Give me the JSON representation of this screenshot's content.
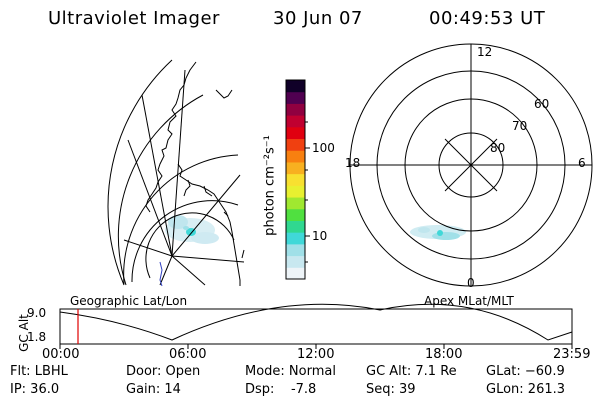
{
  "header": {
    "title": "Ultraviolet Imager",
    "date": "30 Jun 07",
    "time": "00:49:53 UT"
  },
  "colorbar": {
    "unit_label": "photon cm⁻²s⁻¹",
    "ticks": [
      "100",
      "10"
    ],
    "colors": [
      "#eef4f8",
      "#c8e8f0",
      "#a0e0e8",
      "#40d8d8",
      "#30d890",
      "#50e040",
      "#a0e830",
      "#e8f030",
      "#f8e030",
      "#f8b020",
      "#f88010",
      "#f04010",
      "#e00010",
      "#c00030",
      "#900040",
      "#500050",
      "#100028"
    ]
  },
  "geo_map": {
    "title": "Geographic Lat/Lon"
  },
  "polar_plot": {
    "title": "Apex MLat/MLT",
    "hour_labels": {
      "top": "12",
      "left": "18",
      "right": "6",
      "bottom": "0"
    },
    "lat_labels": [
      "60",
      "70",
      "80"
    ]
  },
  "altitude_plot": {
    "ylabel": "GC Alt",
    "y_ticks": [
      "9.0",
      "1.8"
    ],
    "x_ticks": [
      "00:00",
      "06:00",
      "12:00",
      "18:00",
      "23:59"
    ],
    "marker_color": "#e00000"
  },
  "footer": {
    "flt": "Flt: LBHL",
    "ip": "IP: 36.0",
    "door": "Door: Open",
    "gain": "Gain: 14",
    "mode": "Mode: Normal",
    "dsp": "Dsp:    -7.8",
    "gc_alt": "GC Alt: 7.1 Re",
    "seq": "Seq: 39",
    "glat": "GLat: −60.9",
    "glon": "GLon: 261.3"
  }
}
